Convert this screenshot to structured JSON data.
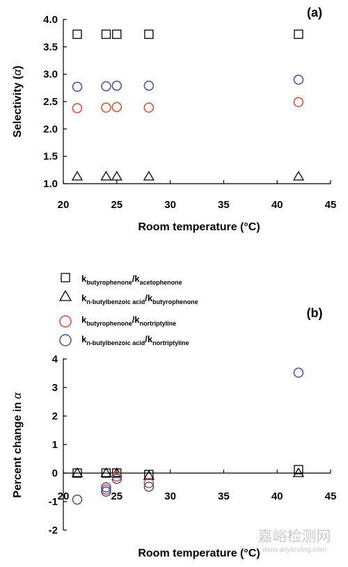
{
  "chart_data": [
    {
      "panel_label": "(a)",
      "type": "scatter",
      "xlabel": "Room temperature (°C)",
      "ylabel_text": "Selectivity (",
      "ylabel_symbol": "α",
      "ylabel_close": ")",
      "xlim": [
        20,
        45
      ],
      "ylim": [
        1.0,
        4.0
      ],
      "x_ticks": [
        "20",
        "25",
        "30",
        "35",
        "40",
        "45"
      ],
      "y_ticks": [
        "1.0",
        "1.5",
        "2.0",
        "2.5",
        "3.0",
        "3.5",
        "4.0"
      ],
      "x_tick_values": [
        20,
        25,
        30,
        35,
        40,
        45
      ],
      "y_tick_values": [
        1.0,
        1.5,
        2.0,
        2.5,
        3.0,
        3.5,
        4.0
      ],
      "series": [
        {
          "marker": "square",
          "color": "#000000",
          "x": [
            21.3,
            24.0,
            25.0,
            28.0,
            42.0
          ],
          "y": [
            3.73,
            3.73,
            3.73,
            3.73,
            3.73
          ]
        },
        {
          "marker": "triangle",
          "color": "#000000",
          "x": [
            21.3,
            24.0,
            25.0,
            28.0,
            42.0
          ],
          "y": [
            1.13,
            1.13,
            1.13,
            1.13,
            1.13
          ]
        },
        {
          "marker": "circle",
          "color": "#e8432a",
          "x": [
            21.3,
            24.0,
            25.0,
            28.0,
            42.0
          ],
          "y": [
            2.38,
            2.39,
            2.4,
            2.39,
            2.49
          ]
        },
        {
          "marker": "circle",
          "color": "#3d4fa8",
          "x": [
            21.3,
            24.0,
            25.0,
            28.0,
            42.0
          ],
          "y": [
            2.77,
            2.78,
            2.79,
            2.79,
            2.9
          ]
        }
      ]
    },
    {
      "panel_label": "(b)",
      "type": "scatter",
      "xlabel": "Room temperature (°C)",
      "ylabel_text": "Percent change in ",
      "ylabel_symbol": "α",
      "xlim": [
        20,
        45
      ],
      "ylim": [
        -2,
        4
      ],
      "x_ticks": [
        "20",
        "25",
        "30",
        "35",
        "40",
        "45"
      ],
      "y_ticks": [
        "-2",
        "-1",
        "0",
        "1",
        "2",
        "3",
        "4"
      ],
      "x_tick_values": [
        20,
        25,
        30,
        35,
        40,
        45
      ],
      "y_tick_values": [
        -2,
        -1,
        0,
        1,
        2,
        3,
        4
      ],
      "legend": [
        {
          "marker": "square",
          "color": "#000000",
          "k1": "k",
          "s1": "butyrophenone",
          "sep": "/",
          "k2": "k",
          "s2": "acetophenone"
        },
        {
          "marker": "triangle",
          "color": "#000000",
          "k1": "k",
          "s1": "n-butylbenzoic acid",
          "sep": "/",
          "k2": "k",
          "s2": "butyrophenone"
        },
        {
          "marker": "circle",
          "color": "#e8432a",
          "k1": "k",
          "s1": "butyrophenone",
          "sep": "/",
          "k2": "k",
          "s2": "nortriptyline"
        },
        {
          "marker": "circle",
          "color": "#3d4fa8",
          "k1": "k",
          "s1": "n-butylbenzoic acid",
          "sep": "/",
          "k2": "k",
          "s2": "nortriptyline"
        }
      ],
      "series": [
        {
          "marker": "square",
          "color": "#000000",
          "x": [
            21.3,
            24.0,
            25.0,
            28.0,
            42.0
          ],
          "y": [
            0.0,
            0.0,
            0.0,
            -0.05,
            0.12
          ]
        },
        {
          "marker": "triangle",
          "color": "#000000",
          "x": [
            21.3,
            24.0,
            25.0,
            28.0,
            42.0
          ],
          "y": [
            0.0,
            0.0,
            0.0,
            -0.1,
            0.0
          ]
        },
        {
          "marker": "circle",
          "color": "#e8432a",
          "x": [
            24.0,
            25.0,
            28.0
          ],
          "y": [
            -0.58,
            -0.12,
            -0.35
          ]
        },
        {
          "marker": "circle",
          "color": "#3d4fa8",
          "x": [
            21.3,
            24.0,
            24.0,
            25.0,
            28.0,
            42.0
          ],
          "y": [
            -0.93,
            -0.5,
            -0.65,
            -0.2,
            -0.48,
            3.52
          ]
        }
      ]
    }
  ],
  "watermark": {
    "line1": "嘉峪检测网",
    "line2": "www.anytesting.com"
  }
}
